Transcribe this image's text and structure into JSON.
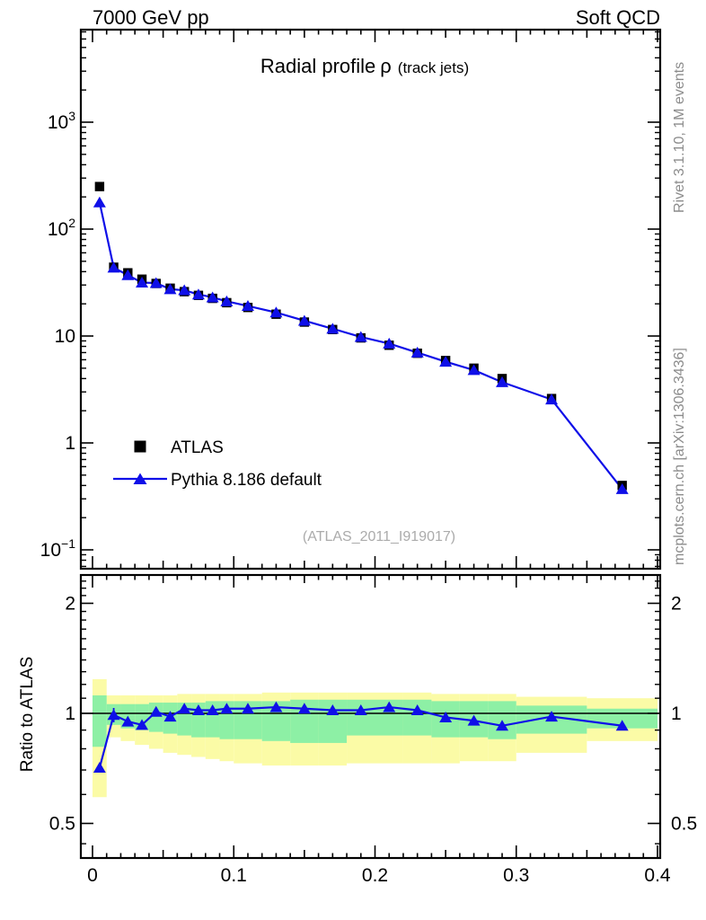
{
  "header": {
    "left": "7000 GeV pp",
    "right": "Soft QCD"
  },
  "title": {
    "main": "Radial profile",
    "symbol": "ρ",
    "paren": "(track jets)"
  },
  "watermark": "(ATLAS_2011_I919017)",
  "side_notes": {
    "right_top": "Rivet 3.1.10,  1M events",
    "right_bottom": "mcplots.cern.ch [arXiv:1306.3436]"
  },
  "ratio_panel": {
    "ylabel": "Ratio to ATLAS"
  },
  "legend": {
    "items": [
      {
        "label": "ATLAS",
        "marker": "black-square"
      },
      {
        "label": "Pythia 8.186 default",
        "marker": "blue-triangle-line"
      }
    ]
  },
  "colors": {
    "blue": "#0f0fe8",
    "green_band": "#8df0a5",
    "yellow_band": "#fbfba6",
    "frame": "#000000",
    "gray_text": "#8c8c8c",
    "watermark": "#ababab"
  },
  "chart_data": {
    "type": "line",
    "title": "Radial profile ρ (track jets)",
    "xlabel": "",
    "ylabel": "",
    "x": [
      0.005,
      0.015,
      0.025,
      0.035,
      0.045,
      0.055,
      0.065,
      0.075,
      0.085,
      0.095,
      0.11,
      0.13,
      0.15,
      0.17,
      0.19,
      0.21,
      0.23,
      0.25,
      0.27,
      0.29,
      0.325,
      0.375
    ],
    "bin_edges": [
      0,
      0.01,
      0.02,
      0.03,
      0.04,
      0.05,
      0.06,
      0.07,
      0.08,
      0.09,
      0.1,
      0.12,
      0.14,
      0.16,
      0.18,
      0.2,
      0.22,
      0.24,
      0.26,
      0.28,
      0.3,
      0.35,
      0.4
    ],
    "series": [
      {
        "name": "ATLAS",
        "marker": "square",
        "color": "#000000",
        "values": [
          250,
          44,
          39,
          34,
          31,
          28,
          26,
          24,
          22.5,
          20.5,
          18.5,
          16,
          13.5,
          11.5,
          9.6,
          8.2,
          6.9,
          5.9,
          5.0,
          4.0,
          2.6,
          0.4
        ]
      },
      {
        "name": "Pythia 8.186 default",
        "marker": "triangle",
        "color": "#0f0fe8",
        "values": [
          178,
          43.6,
          37.1,
          31.6,
          31.3,
          27.4,
          26.8,
          24.5,
          23.0,
          21.1,
          19.1,
          16.6,
          13.9,
          11.7,
          9.8,
          8.5,
          7.0,
          5.75,
          4.8,
          3.7,
          2.55,
          0.37
        ]
      }
    ],
    "ratio": {
      "values": [
        0.71,
        0.99,
        0.95,
        0.93,
        1.01,
        0.98,
        1.03,
        1.02,
        1.02,
        1.03,
        1.03,
        1.04,
        1.03,
        1.02,
        1.02,
        1.04,
        1.02,
        0.975,
        0.955,
        0.925,
        0.98,
        0.925
      ],
      "err": [
        0,
        0.045,
        0.02,
        0.02,
        0.015,
        0.01,
        0,
        0,
        0,
        0,
        0,
        0,
        0,
        0,
        0,
        0,
        0,
        0,
        0,
        0,
        0,
        0
      ],
      "green_lo": [
        0.81,
        0.93,
        0.91,
        0.9,
        0.89,
        0.88,
        0.87,
        0.86,
        0.86,
        0.85,
        0.85,
        0.84,
        0.83,
        0.83,
        0.87,
        0.87,
        0.87,
        0.86,
        0.86,
        0.85,
        0.88,
        0.91
      ],
      "green_hi": [
        1.12,
        1.06,
        1.06,
        1.06,
        1.07,
        1.07,
        1.07,
        1.07,
        1.08,
        1.08,
        1.08,
        1.08,
        1.09,
        1.09,
        1.09,
        1.09,
        1.09,
        1.08,
        1.08,
        1.08,
        1.05,
        1.03
      ],
      "yellow_lo": [
        0.59,
        0.86,
        0.84,
        0.82,
        0.8,
        0.78,
        0.77,
        0.76,
        0.75,
        0.74,
        0.73,
        0.72,
        0.72,
        0.72,
        0.73,
        0.73,
        0.73,
        0.73,
        0.74,
        0.74,
        0.78,
        0.84
      ],
      "yellow_hi": [
        1.24,
        1.12,
        1.12,
        1.12,
        1.12,
        1.12,
        1.13,
        1.13,
        1.13,
        1.13,
        1.13,
        1.14,
        1.14,
        1.14,
        1.14,
        1.14,
        1.14,
        1.13,
        1.13,
        1.13,
        1.11,
        1.1
      ]
    },
    "axes": {
      "x": {
        "min": -0.008,
        "max": 0.402,
        "ticks": [
          {
            "v": 0,
            "label": "0"
          },
          {
            "v": 0.1,
            "label": "0.1"
          },
          {
            "v": 0.2,
            "label": "0.2"
          },
          {
            "v": 0.3,
            "label": "0.3"
          },
          {
            "v": 0.4,
            "label": "0.4"
          }
        ]
      },
      "y_top": {
        "scale": "log",
        "min": 0.067,
        "max": 7300,
        "ticks": [
          {
            "v": 1000,
            "base": "10",
            "exp": "3"
          },
          {
            "v": 100,
            "base": "10",
            "exp": "2"
          },
          {
            "v": 10,
            "base": "10",
            "exp": ""
          },
          {
            "v": 1,
            "base": "1",
            "exp": ""
          },
          {
            "v": 0.1,
            "base": "10",
            "exp": "−1"
          }
        ]
      },
      "y_ratio": {
        "scale": "log",
        "min": 0.4,
        "max": 2.39,
        "ticks": [
          {
            "v": 2,
            "label": "2"
          },
          {
            "v": 1,
            "label": "1"
          },
          {
            "v": 0.5,
            "label": "0.5"
          }
        ],
        "minor": [
          0.44,
          0.6,
          0.7,
          0.8,
          0.9,
          1.1,
          1.2,
          1.3,
          1.4,
          1.5,
          1.6,
          1.7,
          1.8,
          1.9,
          2.1,
          2.2,
          2.3
        ]
      },
      "grid": false,
      "legend_position": "left-middle-of-top-panel"
    }
  }
}
